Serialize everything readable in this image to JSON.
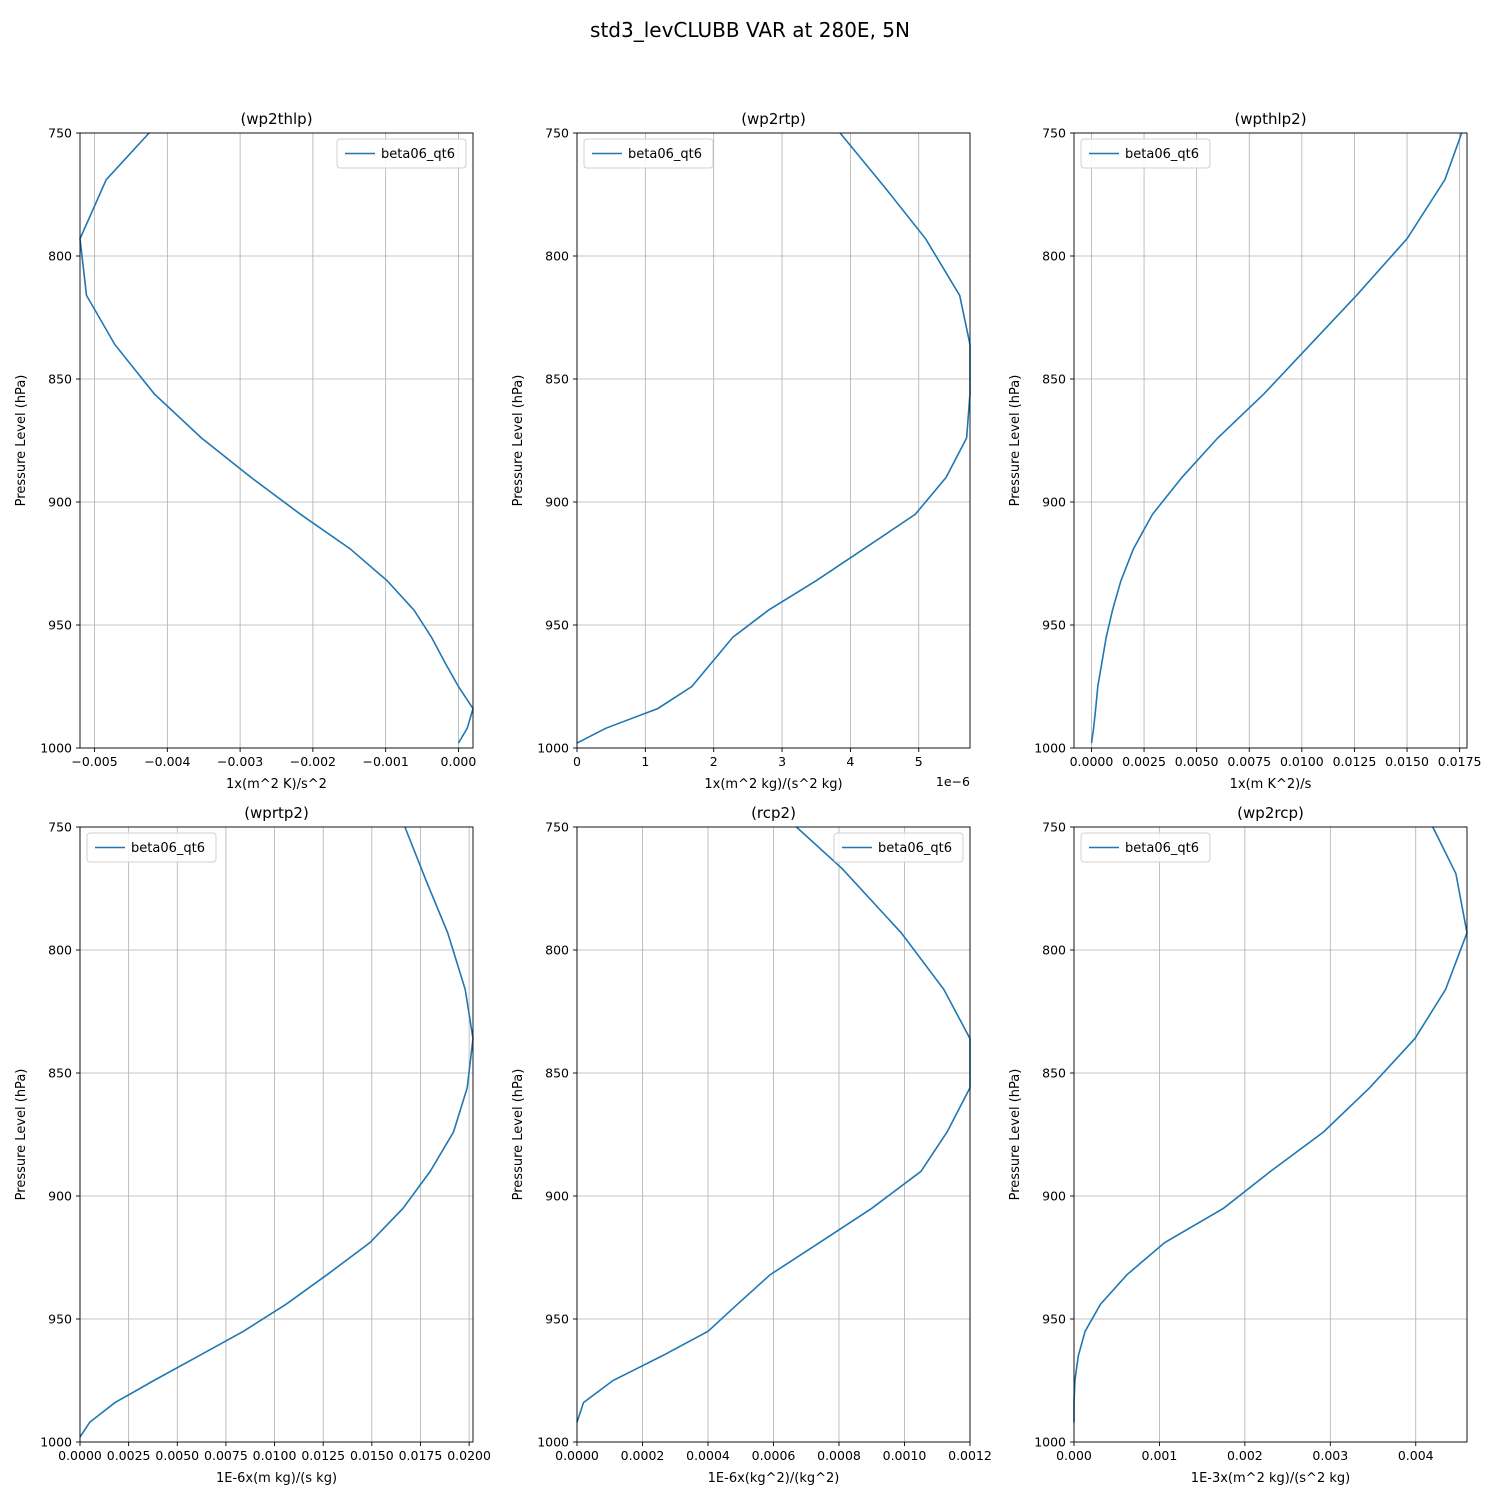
{
  "figure": {
    "title": "std3_levCLUBB VAR at 280E, 5N"
  },
  "chart_data": [
    {
      "type": "line",
      "title": "(wp2thlp)",
      "xlabel": "1x(m^2 K)/s^2",
      "ylabel": "Pressure Level (hPa)",
      "xlim": [
        -0.0052,
        0.0002
      ],
      "ylim": [
        1000,
        750
      ],
      "xticks": [
        -0.005,
        -0.004,
        -0.003,
        -0.002,
        -0.001,
        0.0
      ],
      "xtick_labels": [
        "−0.005",
        "−0.004",
        "−0.003",
        "−0.002",
        "−0.001",
        "0.000"
      ],
      "yticks": [
        750,
        800,
        850,
        900,
        950,
        1000
      ],
      "x_offset_label": "",
      "grid": true,
      "legend": "upper right",
      "series": [
        {
          "name": "beta06_qt6",
          "color": "#1f77b4",
          "points": [
            [
              -0.00425,
              750
            ],
            [
              -0.00484,
              769
            ],
            [
              -0.0052,
              793
            ],
            [
              -0.00511,
              816
            ],
            [
              -0.00472,
              836
            ],
            [
              -0.00418,
              856
            ],
            [
              -0.00353,
              874
            ],
            [
              -0.00285,
              890
            ],
            [
              -0.00217,
              905
            ],
            [
              -0.00149,
              919
            ],
            [
              -0.00098,
              932
            ],
            [
              -0.00061,
              944
            ],
            [
              -0.00037,
              955
            ],
            [
              -0.00019,
              965
            ],
            [
              0.0,
              975
            ],
            [
              0.0002,
              984
            ],
            [
              0.00012,
              992
            ],
            [
              0.0,
              998
            ]
          ]
        }
      ]
    },
    {
      "type": "line",
      "title": "(wp2rtp)",
      "xlabel": "1x(m^2 kg)/(s^2 kg)",
      "ylabel": "Pressure Level (hPa)",
      "xlim": [
        0,
        5.75
      ],
      "ylim": [
        1000,
        750
      ],
      "xticks": [
        0,
        1,
        2,
        3,
        4,
        5
      ],
      "xtick_labels": [
        "0",
        "1",
        "2",
        "3",
        "4",
        "5"
      ],
      "yticks": [
        750,
        800,
        850,
        900,
        950,
        1000
      ],
      "x_offset_label": "1e−6",
      "grid": true,
      "legend": "upper left",
      "series": [
        {
          "name": "beta06_qt6",
          "color": "#1f77b4",
          "points": [
            [
              3.85,
              750
            ],
            [
              4.5,
              772
            ],
            [
              5.1,
              793
            ],
            [
              5.6,
              816
            ],
            [
              5.75,
              836
            ],
            [
              5.75,
              856
            ],
            [
              5.7,
              874
            ],
            [
              5.4,
              890
            ],
            [
              4.95,
              905
            ],
            [
              4.2,
              919
            ],
            [
              3.5,
              932
            ],
            [
              2.8,
              944
            ],
            [
              2.28,
              955
            ],
            [
              1.98,
              965
            ],
            [
              1.68,
              975
            ],
            [
              1.18,
              984
            ],
            [
              0.42,
              992
            ],
            [
              0.0,
              998
            ]
          ]
        }
      ]
    },
    {
      "type": "line",
      "title": "(wpthlp2)",
      "xlabel": "1x(m K^2)/s",
      "ylabel": "Pressure Level (hPa)",
      "xlim": [
        -0.00083,
        0.01785
      ],
      "ylim": [
        1000,
        750
      ],
      "xticks": [
        0.0,
        0.0025,
        0.005,
        0.0075,
        0.01,
        0.0125,
        0.015,
        0.0175
      ],
      "xtick_labels": [
        "0.0000",
        "0.0025",
        "0.0050",
        "0.0075",
        "0.0100",
        "0.0125",
        "0.0150",
        "0.0175"
      ],
      "yticks": [
        750,
        800,
        850,
        900,
        950,
        1000
      ],
      "x_offset_label": "",
      "grid": true,
      "legend": "upper left",
      "series": [
        {
          "name": "beta06_qt6",
          "color": "#1f77b4",
          "points": [
            [
              0.0176,
              750
            ],
            [
              0.0168,
              769
            ],
            [
              0.015,
              793
            ],
            [
              0.0126,
              816
            ],
            [
              0.0104,
              836
            ],
            [
              0.0082,
              856
            ],
            [
              0.006,
              874
            ],
            [
              0.0043,
              890
            ],
            [
              0.0029,
              905
            ],
            [
              0.002,
              919
            ],
            [
              0.0014,
              932
            ],
            [
              0.001,
              944
            ],
            [
              0.0007,
              955
            ],
            [
              0.0005,
              965
            ],
            [
              0.0003,
              975
            ],
            [
              0.0002,
              984
            ],
            [
              0.0001,
              992
            ],
            [
              0.0,
              998
            ]
          ]
        }
      ]
    },
    {
      "type": "line",
      "title": "(wprtp2)",
      "xlabel": "1E-6x(m kg)/(s kg)",
      "ylabel": "Pressure Level (hPa)",
      "xlim": [
        0,
        0.0202
      ],
      "ylim": [
        1000,
        750
      ],
      "xticks": [
        0.0,
        0.0025,
        0.005,
        0.0075,
        0.01,
        0.0125,
        0.015,
        0.0175,
        0.02
      ],
      "xtick_labels": [
        "0.0000",
        "0.0025",
        "0.0050",
        "0.0075",
        "0.0100",
        "0.0125",
        "0.0150",
        "0.0175",
        "0.0200"
      ],
      "yticks": [
        750,
        800,
        850,
        900,
        950,
        1000
      ],
      "x_offset_label": "",
      "grid": true,
      "legend": "upper left",
      "series": [
        {
          "name": "beta06_qt6",
          "color": "#1f77b4",
          "points": [
            [
              0.0167,
              750
            ],
            [
              0.0178,
              772
            ],
            [
              0.0189,
              793
            ],
            [
              0.0198,
              816
            ],
            [
              0.0202,
              836
            ],
            [
              0.0199,
              856
            ],
            [
              0.0192,
              874
            ],
            [
              0.018,
              890
            ],
            [
              0.0166,
              905
            ],
            [
              0.0149,
              919
            ],
            [
              0.0127,
              932
            ],
            [
              0.0106,
              944
            ],
            [
              0.0084,
              955
            ],
            [
              0.0061,
              965
            ],
            [
              0.0038,
              975
            ],
            [
              0.0018,
              984
            ],
            [
              0.0005,
              992
            ],
            [
              0.0,
              998
            ]
          ]
        }
      ]
    },
    {
      "type": "line",
      "title": "(rcp2)",
      "xlabel": "1E-6x(kg^2)/(kg^2)",
      "ylabel": "Pressure Level (hPa)",
      "xlim": [
        0,
        0.0012
      ],
      "ylim": [
        1000,
        750
      ],
      "xticks": [
        0.0,
        0.0002,
        0.0004,
        0.0006,
        0.0008,
        0.001,
        0.0012
      ],
      "xtick_labels": [
        "0.0000",
        "0.0002",
        "0.0004",
        "0.0006",
        "0.0008",
        "0.0010",
        "0.0012"
      ],
      "yticks": [
        750,
        800,
        850,
        900,
        950,
        1000
      ],
      "x_offset_label": "",
      "grid": true,
      "legend": "upper right",
      "series": [
        {
          "name": "beta06_qt6",
          "color": "#1f77b4",
          "points": [
            [
              0.00067,
              750
            ],
            [
              0.00081,
              767
            ],
            [
              0.00099,
              793
            ],
            [
              0.00112,
              816
            ],
            [
              0.0012,
              836
            ],
            [
              0.0012,
              856
            ],
            [
              0.00113,
              874
            ],
            [
              0.00105,
              890
            ],
            [
              0.0009,
              905
            ],
            [
              0.00074,
              919
            ],
            [
              0.00059,
              932
            ],
            [
              0.00049,
              944
            ],
            [
              0.0004,
              955
            ],
            [
              0.00026,
              965
            ],
            [
              0.00011,
              975
            ],
            [
              2e-05,
              984
            ],
            [
              0.0,
              992
            ]
          ]
        }
      ]
    },
    {
      "type": "line",
      "title": "(wp2rcp)",
      "xlabel": "1E-3x(m^2 kg)/(s^2 kg)",
      "ylabel": "Pressure Level (hPa)",
      "xlim": [
        0,
        0.0046
      ],
      "ylim": [
        1000,
        750
      ],
      "xticks": [
        0.0,
        0.001,
        0.002,
        0.003,
        0.004
      ],
      "xtick_labels": [
        "0.000",
        "0.001",
        "0.002",
        "0.003",
        "0.004"
      ],
      "yticks": [
        750,
        800,
        850,
        900,
        950,
        1000
      ],
      "x_offset_label": "",
      "grid": true,
      "legend": "upper left",
      "series": [
        {
          "name": "beta06_qt6",
          "color": "#1f77b4",
          "points": [
            [
              0.0042,
              750
            ],
            [
              0.00447,
              769
            ],
            [
              0.0046,
              793
            ],
            [
              0.00435,
              816
            ],
            [
              0.00399,
              836
            ],
            [
              0.00346,
              856
            ],
            [
              0.00292,
              874
            ],
            [
              0.0023,
              890
            ],
            [
              0.00175,
              905
            ],
            [
              0.00106,
              919
            ],
            [
              0.00062,
              932
            ],
            [
              0.00031,
              944
            ],
            [
              0.00013,
              955
            ],
            [
              5e-05,
              965
            ],
            [
              1e-05,
              975
            ],
            [
              0.0,
              984
            ],
            [
              0.0,
              992
            ]
          ]
        }
      ]
    }
  ]
}
